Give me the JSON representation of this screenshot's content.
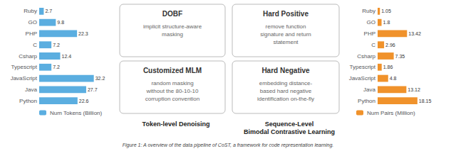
{
  "chart_data": [
    {
      "type": "bar",
      "orientation": "horizontal",
      "title": "Token-level Denoising",
      "categories": [
        "Ruby",
        "GO",
        "PHP",
        "C",
        "Csharp",
        "Typescript",
        "JavaScript",
        "Java",
        "Python"
      ],
      "series": [
        {
          "name": "Num Tokens (Billion)",
          "color": "#5baee0",
          "values": [
            2.7,
            9.8,
            22.3,
            7.2,
            12.4,
            7.2,
            32.2,
            27.7,
            22.6
          ]
        }
      ],
      "xlim": [
        0,
        42
      ],
      "data_labels": true,
      "tick_labels": "y",
      "grid": false,
      "legend": "lower left",
      "annotations": [
        {
          "title": "DOBF",
          "text": "implicit structure-aware\nmasking"
        },
        {
          "title": "Customized MLM",
          "text": "random masking\nwithout the 80-10-10\ncorruption convention"
        }
      ]
    },
    {
      "type": "bar",
      "orientation": "horizontal",
      "title": "Sequence-Level\nBimodal Contrastive Learning",
      "categories": [
        "Ruby",
        "GO",
        "PHP",
        "C",
        "Csharp",
        "Typescript",
        "JavaScript",
        "Java",
        "Python"
      ],
      "series": [
        {
          "name": "Num Pairs (Million)",
          "color": "#f0922b",
          "values": [
            1.05,
            1.8,
            13.42,
            2.96,
            7.35,
            1.86,
            4.8,
            13.12,
            18.15
          ]
        }
      ],
      "xlim": [
        0,
        26
      ],
      "data_labels": true,
      "tick_labels": "y",
      "grid": false,
      "legend": "lower left",
      "annotations": [
        {
          "title": "Hard Positive",
          "text": "remove function\nsignature and return\nstatement"
        },
        {
          "title": "Hard Negative",
          "text": "embedding distance-\nbased hard negative\nidentification on-the-fly"
        }
      ]
    }
  ],
  "caption": "Figure 1: A overview of the data pipeline of CoST, a framework for code representation learning."
}
